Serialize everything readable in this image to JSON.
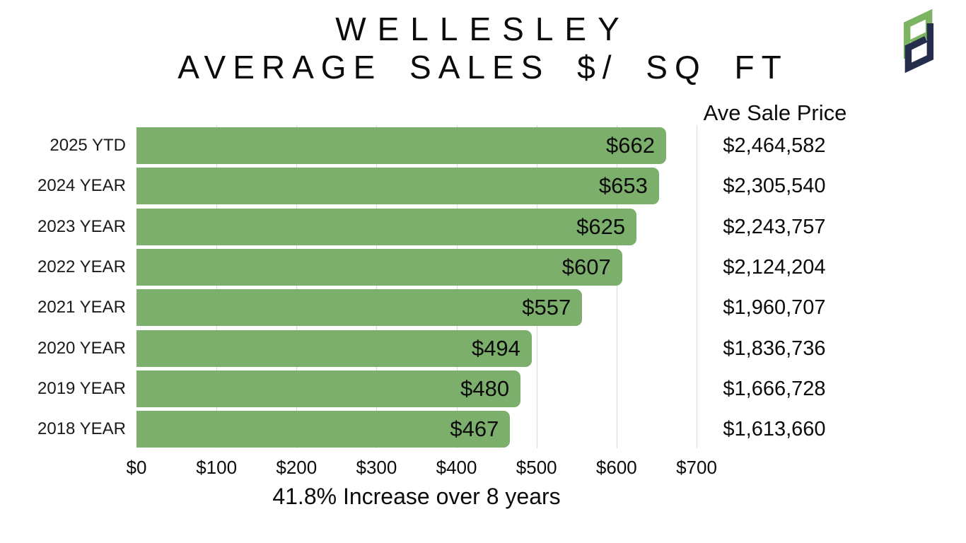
{
  "title": {
    "line1": "WELLESLEY",
    "line2": "AVERAGE SALES $/ SQ FT"
  },
  "logo": {
    "name": "PD monogram",
    "green": "#7CB461",
    "navy": "#242D4B"
  },
  "chart_data": {
    "type": "bar",
    "orientation": "horizontal",
    "title": "WELLESLEY AVERAGE SALES $/ SQ FT",
    "categories": [
      "2025 YTD",
      "2024 YEAR",
      "2023 YEAR",
      "2022 YEAR",
      "2021 YEAR",
      "2020 YEAR",
      "2019 YEAR",
      "2018 YEAR"
    ],
    "values": [
      662,
      653,
      625,
      607,
      557,
      494,
      480,
      467
    ],
    "bar_labels": [
      "$662",
      "$653",
      "$625",
      "$607",
      "$557",
      "$494",
      "$480",
      "$467"
    ],
    "xlim": [
      0,
      700
    ],
    "x_tick_values": [
      0,
      100,
      200,
      300,
      400,
      500,
      600,
      700
    ],
    "x_tick_labels": [
      "$0",
      "$100",
      "$200",
      "$300",
      "$400",
      "$500",
      "$600",
      "$700"
    ],
    "grid": "vertical-gridlines-on",
    "legend": "none",
    "bar_color": "#7CAE6C",
    "gridline_color": "#D9D9D9",
    "secondary_column": {
      "header": "Ave Sale Price",
      "values": [
        "$2,464,582",
        "$2,305,540",
        "$2,243,757",
        "$2,124,204",
        "$1,960,707",
        "$1,836,736",
        "$1,666,728",
        "$1,613,660"
      ]
    },
    "caption": "41.8% Increase over 8 years"
  }
}
